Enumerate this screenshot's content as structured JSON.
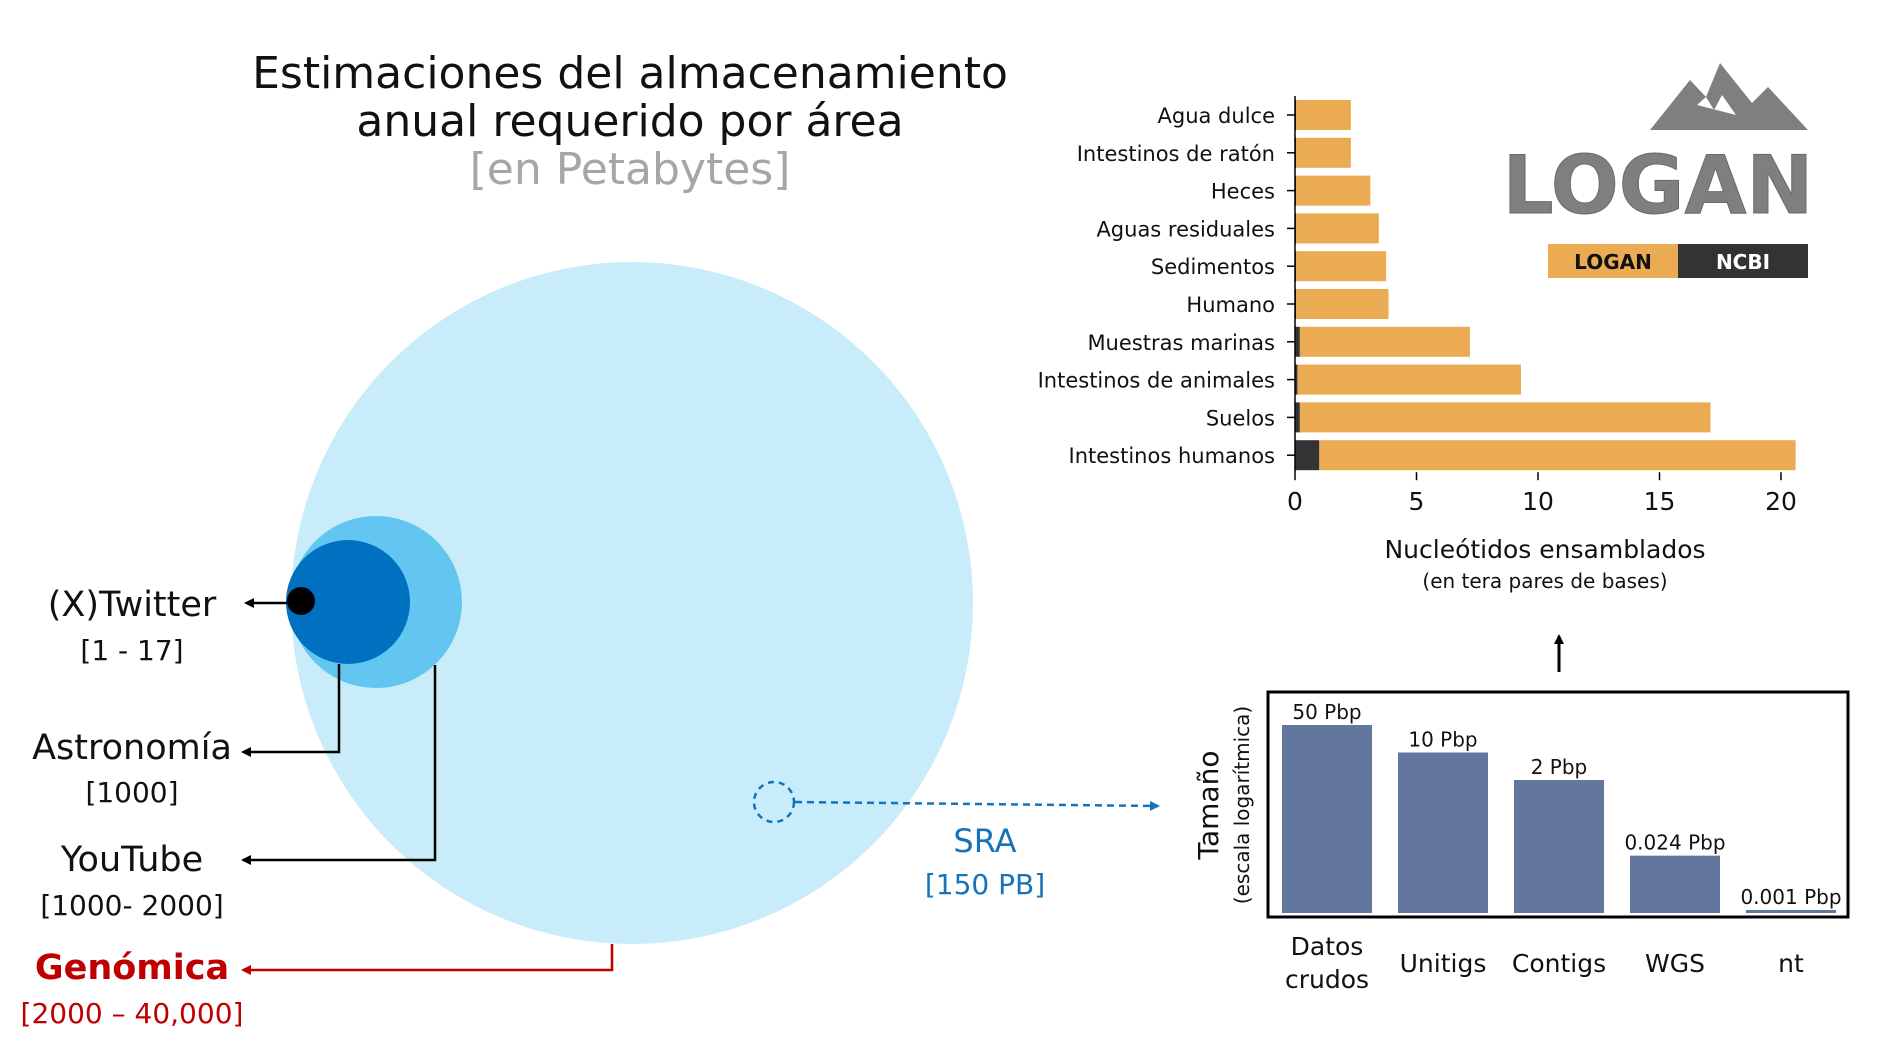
{
  "title_line1": "Estimaciones del almacenamiento",
  "title_line2": "anual requerido por área",
  "subtitle": "[en Petabytes]",
  "areas": [
    {
      "name": "(X)Twitter",
      "range": "[1 - 17]"
    },
    {
      "name": "Astronomía",
      "range": "[1000]"
    },
    {
      "name": "YouTube",
      "range": "[1000- 2000]"
    },
    {
      "name": "Genómica",
      "range": "[2000 – 40,000]"
    }
  ],
  "sra": {
    "name": "SRA",
    "range": "[150 PB]"
  },
  "colors": {
    "genomics_circle": "#c8ecfa",
    "youtube_circle": "#62c6f0",
    "astronomy_circle": "#0070c0",
    "twitter_circle": "#000000",
    "genomics_text": "#c00000",
    "sra_text": "#1773b9",
    "logan_bar": "#ebab52",
    "ncbi_bar": "#333333",
    "size_bar": "#63769e"
  },
  "logo": {
    "text": "LOGAN"
  },
  "chart_data": [
    {
      "type": "bar",
      "orientation": "horizontal",
      "stacked": true,
      "categories": [
        "Agua dulce",
        "Intestinos de ratón",
        "Heces",
        "Aguas residuales",
        "Sedimentos",
        "Humano",
        "Muestras marinas",
        "Intestinos de animales",
        "Suelos",
        "Intestinos humanos"
      ],
      "series": [
        {
          "name": "NCBI",
          "values": [
            0.05,
            0.05,
            0.05,
            0.05,
            0.05,
            0.05,
            0.2,
            0.1,
            0.2,
            1.0
          ]
        },
        {
          "name": "LOGAN",
          "values": [
            2.25,
            2.25,
            3.05,
            3.4,
            3.7,
            3.8,
            7.0,
            9.2,
            16.9,
            19.6
          ]
        }
      ],
      "xlabel": "Nucleótidos ensamblados",
      "xlabel_sub": "(en tera pares de bases)",
      "xlim": [
        0,
        21
      ],
      "xticks": [
        0,
        5,
        10,
        15,
        20
      ],
      "legend": "top-right"
    },
    {
      "type": "bar",
      "categories": [
        "Datos crudos",
        "Unitigs",
        "Contigs",
        "WGS",
        "nt"
      ],
      "values": [
        50,
        10,
        2,
        0.024,
        0.001
      ],
      "data_labels": [
        "50 Pbp",
        "10 Pbp",
        "2 Pbp",
        "0.024 Pbp",
        "0.001 Pbp"
      ],
      "ylabel": "Tamaño",
      "ylabel_sub": "(escala logarítmica)",
      "yscale": "log",
      "ylim": [
        0.001,
        50
      ]
    }
  ]
}
